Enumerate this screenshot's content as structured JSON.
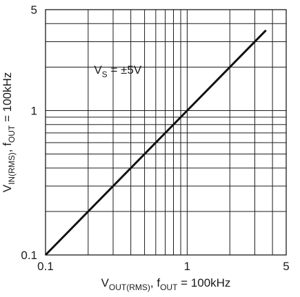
{
  "chart_data": {
    "type": "line",
    "scale": {
      "x": "log",
      "y": "log"
    },
    "xlim": [
      0.1,
      5
    ],
    "ylim": [
      0.1,
      5
    ],
    "x_ticks": [
      {
        "value": 0.1,
        "label": "0.1"
      },
      {
        "value": 1,
        "label": "1"
      },
      {
        "value": 5,
        "label": "5"
      }
    ],
    "y_ticks": [
      {
        "value": 0.1,
        "label": "0.1"
      },
      {
        "value": 1,
        "label": "1"
      },
      {
        "value": 5,
        "label": "5"
      }
    ],
    "grid": true,
    "xlabel": {
      "parts": [
        {
          "text": "V",
          "sub": false
        },
        {
          "text": "OUT(RMS)",
          "sub": true
        },
        {
          "text": ", f",
          "sub": false
        },
        {
          "text": "OUT",
          "sub": true
        },
        {
          "text": " = 100kHz",
          "sub": false
        }
      ]
    },
    "ylabel": {
      "parts": [
        {
          "text": "V",
          "sub": false
        },
        {
          "text": "IN(RMS)",
          "sub": true
        },
        {
          "text": ", f",
          "sub": false
        },
        {
          "text": "OUT",
          "sub": true
        },
        {
          "text": " = 100kHz",
          "sub": false
        }
      ]
    },
    "annotations": [
      {
        "parts": [
          {
            "text": "V",
            "sub": false
          },
          {
            "text": "S",
            "sub": true
          },
          {
            "text": " = ±5V",
            "sub": false
          }
        ],
        "x": 0.22,
        "y": 1.8
      }
    ],
    "series": [
      {
        "x": [
          0.1,
          3.6
        ],
        "y": [
          0.1,
          3.6
        ]
      }
    ],
    "colors": {
      "line": "#111111",
      "grid": "#1a1a1a",
      "text": "#1a1a1a"
    }
  }
}
